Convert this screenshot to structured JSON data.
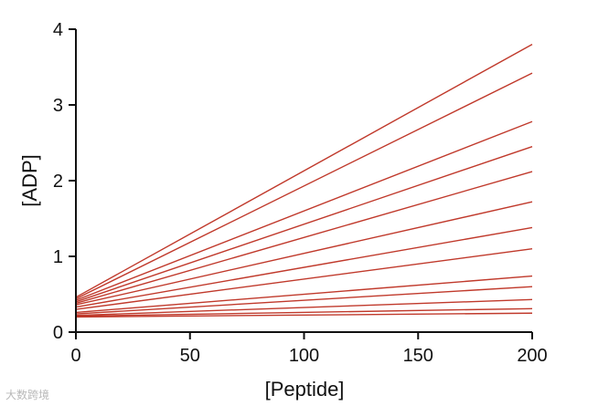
{
  "chart_data": {
    "type": "line",
    "title": "",
    "xlabel": "[Peptide]",
    "ylabel": "[ADP]",
    "xlim": [
      0,
      200
    ],
    "ylim": [
      0,
      4
    ],
    "xticks": [
      0,
      50,
      100,
      150,
      200
    ],
    "yticks": [
      0,
      1,
      2,
      3,
      4
    ],
    "grid": false,
    "legend": "none",
    "line_color": "#c0392b",
    "x": [
      0,
      200
    ],
    "series": [
      {
        "values": [
          0.46,
          3.8
        ]
      },
      {
        "values": [
          0.44,
          3.42
        ]
      },
      {
        "values": [
          0.42,
          2.78
        ]
      },
      {
        "values": [
          0.4,
          2.45
        ]
      },
      {
        "values": [
          0.38,
          2.12
        ]
      },
      {
        "values": [
          0.36,
          1.72
        ]
      },
      {
        "values": [
          0.33,
          1.38
        ]
      },
      {
        "values": [
          0.3,
          1.1
        ]
      },
      {
        "values": [
          0.26,
          0.74
        ]
      },
      {
        "values": [
          0.24,
          0.6
        ]
      },
      {
        "values": [
          0.22,
          0.43
        ]
      },
      {
        "values": [
          0.21,
          0.31
        ]
      },
      {
        "values": [
          0.2,
          0.25
        ]
      }
    ]
  },
  "watermark": "大数跨境"
}
